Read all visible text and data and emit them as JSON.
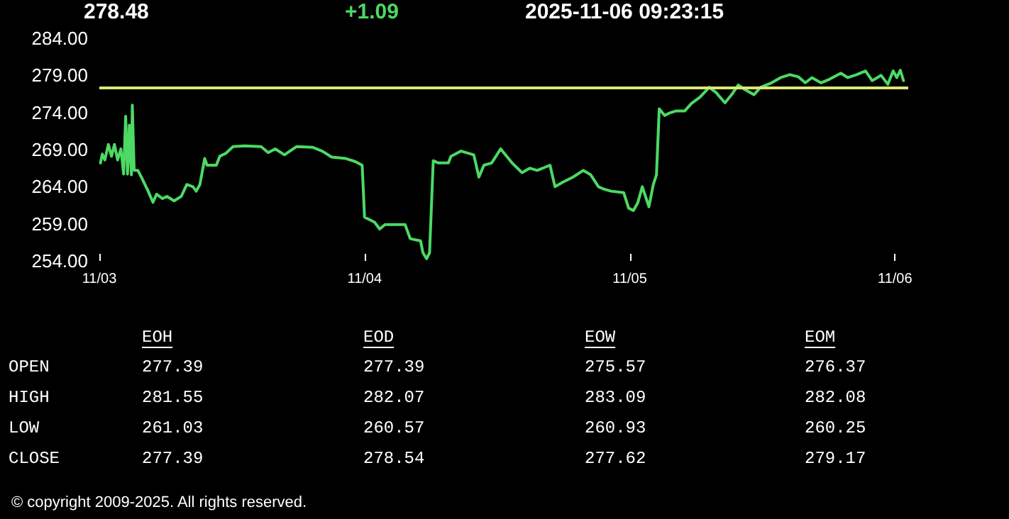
{
  "chart_data": {
    "type": "line",
    "title": "278.48",
    "subtitle": "+1.09",
    "annotations": [
      "2025-11-06 09:23:15",
      "EOH",
      "EOD",
      "EOW",
      "EOM",
      "OPEN",
      "277.39",
      "277.39",
      "275.57",
      "276.37",
      "HIGH",
      "281.55",
      "282.07",
      "283.09",
      "282.08",
      "LOW",
      "261.03",
      "260.57",
      "260.93",
      "260.25",
      "CLOSE",
      "277.39",
      "278.54",
      "277.62",
      "279.17",
      "© copyright 2009-2025. All rights reserved."
    ],
    "xlim": [
      "2025-11-03T00:00",
      "2025-11-06T01:12"
    ],
    "xticks": [
      {
        "value": "2025-11-03",
        "label": "11/03"
      },
      {
        "value": "2025-11-04",
        "label": "11/04"
      },
      {
        "value": "2025-11-05",
        "label": "11/05"
      },
      {
        "value": "2025-11-06",
        "label": "11/06"
      }
    ],
    "ylim": [
      254,
      284
    ],
    "yticks": [
      {
        "value": 254,
        "label": "254.00"
      },
      {
        "value": 259,
        "label": "259.00"
      },
      {
        "value": 264,
        "label": "264.00"
      },
      {
        "value": 269,
        "label": "269.00"
      },
      {
        "value": 274,
        "label": "274.00"
      },
      {
        "value": 279,
        "label": "279.00"
      },
      {
        "value": 284,
        "label": "284.00"
      }
    ],
    "grid": false,
    "marker": "none",
    "line_style": "solid",
    "ref_lines": [
      {
        "axis": "y",
        "value": 277.39,
        "color": "#dce775"
      }
    ],
    "series": [
      {
        "color": "#4cd964",
        "x": [
          "2025-11-03T00:06",
          "2025-11-03T00:16",
          "2025-11-03T00:30",
          "2025-11-03T00:49",
          "2025-11-03T01:06",
          "2025-11-03T01:22",
          "2025-11-03T01:39",
          "2025-11-03T01:57",
          "2025-11-03T02:12",
          "2025-11-03T02:23",
          "2025-11-03T02:33",
          "2025-11-03T02:43",
          "2025-11-03T02:54",
          "2025-11-03T02:59",
          "2025-11-03T03:09",
          "2025-11-03T03:29",
          "2025-11-03T03:48",
          "2025-11-03T04:25",
          "2025-11-03T04:51",
          "2025-11-03T05:11",
          "2025-11-03T05:43",
          "2025-11-03T06:07",
          "2025-11-03T06:46",
          "2025-11-03T07:25",
          "2025-11-03T07:55",
          "2025-11-03T08:28",
          "2025-11-03T08:46",
          "2025-11-03T09:06",
          "2025-11-03T09:32",
          "2025-11-03T09:45",
          "2025-11-03T10:35",
          "2025-11-03T10:54",
          "2025-11-03T11:27",
          "2025-11-03T12:06",
          "2025-11-03T13:09",
          "2025-11-03T14:38",
          "2025-11-03T15:17",
          "2025-11-03T15:55",
          "2025-11-03T16:45",
          "2025-11-03T17:50",
          "2025-11-03T19:19",
          "2025-11-03T20:10",
          "2025-11-03T21:01",
          "2025-11-03T22:18",
          "2025-11-03T23:08",
          "2025-11-03T23:47",
          "2025-11-04T00:00",
          "2025-11-04T00:55",
          "2025-11-04T01:22",
          "2025-11-04T01:51",
          "2025-11-04T03:40",
          "2025-11-04T04:08",
          "2025-11-04T05:04",
          "2025-11-04T05:17",
          "2025-11-04T05:37",
          "2025-11-04T05:53",
          "2025-11-04T06:13",
          "2025-11-04T06:40",
          "2025-11-04T07:35",
          "2025-11-04T07:49",
          "2025-11-04T08:44",
          "2025-11-04T09:53",
          "2025-11-04T10:21",
          "2025-11-04T10:48",
          "2025-11-04T11:30",
          "2025-11-04T12:19",
          "2025-11-04T13:21",
          "2025-11-04T14:15",
          "2025-11-04T14:57",
          "2025-11-04T15:37",
          "2025-11-04T16:47",
          "2025-11-04T17:14",
          "2025-11-04T17:56",
          "2025-11-04T18:52",
          "2025-11-04T19:47",
          "2025-11-04T20:28",
          "2025-11-04T21:10",
          "2025-11-04T21:37",
          "2025-11-04T22:19",
          "2025-11-04T23:27",
          "2025-11-04T23:54",
          "2025-11-05T00:20",
          "2025-11-05T00:43",
          "2025-11-05T01:08",
          "2025-11-05T01:44",
          "2025-11-05T02:08",
          "2025-11-05T02:25",
          "2025-11-05T02:40",
          "2025-11-05T03:09",
          "2025-11-05T03:33",
          "2025-11-05T04:09",
          "2025-11-05T04:58",
          "2025-11-05T05:34",
          "2025-11-05T06:23",
          "2025-11-05T07:11",
          "2025-11-05T07:48",
          "2025-11-05T08:37",
          "2025-11-05T09:13",
          "2025-11-05T09:49",
          "2025-11-05T10:25",
          "2025-11-05T11:14",
          "2025-11-05T11:50",
          "2025-11-05T12:50",
          "2025-11-05T13:39",
          "2025-11-05T14:28",
          "2025-11-05T15:16",
          "2025-11-05T15:53",
          "2025-11-05T16:29",
          "2025-11-05T17:18",
          "2025-11-05T18:06",
          "2025-11-05T19:06",
          "2025-11-05T19:44",
          "2025-11-05T20:31",
          "2025-11-05T21:20",
          "2025-11-05T21:56",
          "2025-11-05T22:45",
          "2025-11-05T23:21",
          "2025-11-05T23:50",
          "2025-11-06T00:10",
          "2025-11-06T00:29",
          "2025-11-06T00:46"
        ],
        "values": [
          267.2,
          268.4,
          267.6,
          269.7,
          268.1,
          269.7,
          267.6,
          269.1,
          265.7,
          273.5,
          265.7,
          272.3,
          265.6,
          275.0,
          266.2,
          266.2,
          265.3,
          263.4,
          261.9,
          263.0,
          262.4,
          262.7,
          262.1,
          262.7,
          264.3,
          264.0,
          263.4,
          264.3,
          267.8,
          266.9,
          266.9,
          268.1,
          268.5,
          269.4,
          269.5,
          269.4,
          268.6,
          269.1,
          268.3,
          269.4,
          269.3,
          268.8,
          268.0,
          267.8,
          267.4,
          266.9,
          259.9,
          259.2,
          258.3,
          258.9,
          258.9,
          257.0,
          256.7,
          255.1,
          254.3,
          255.1,
          267.5,
          267.2,
          267.2,
          268.1,
          268.8,
          268.3,
          265.3,
          266.9,
          267.2,
          269.1,
          267.2,
          265.9,
          266.5,
          266.2,
          266.9,
          264.0,
          264.6,
          265.3,
          266.2,
          265.6,
          264.0,
          263.7,
          263.4,
          263.2,
          261.1,
          260.8,
          261.8,
          264.0,
          261.3,
          264.3,
          265.6,
          274.5,
          273.6,
          273.9,
          274.2,
          274.2,
          275.2,
          276.1,
          277.4,
          276.7,
          275.3,
          276.4,
          277.7,
          277.1,
          276.4,
          277.4,
          278.0,
          278.7,
          279.1,
          278.8,
          278.0,
          278.7,
          278.0,
          278.5,
          279.3,
          278.7,
          279.1,
          279.6,
          278.3,
          279.0,
          277.8,
          279.6,
          278.7,
          279.7,
          278.3
        ]
      }
    ]
  }
}
